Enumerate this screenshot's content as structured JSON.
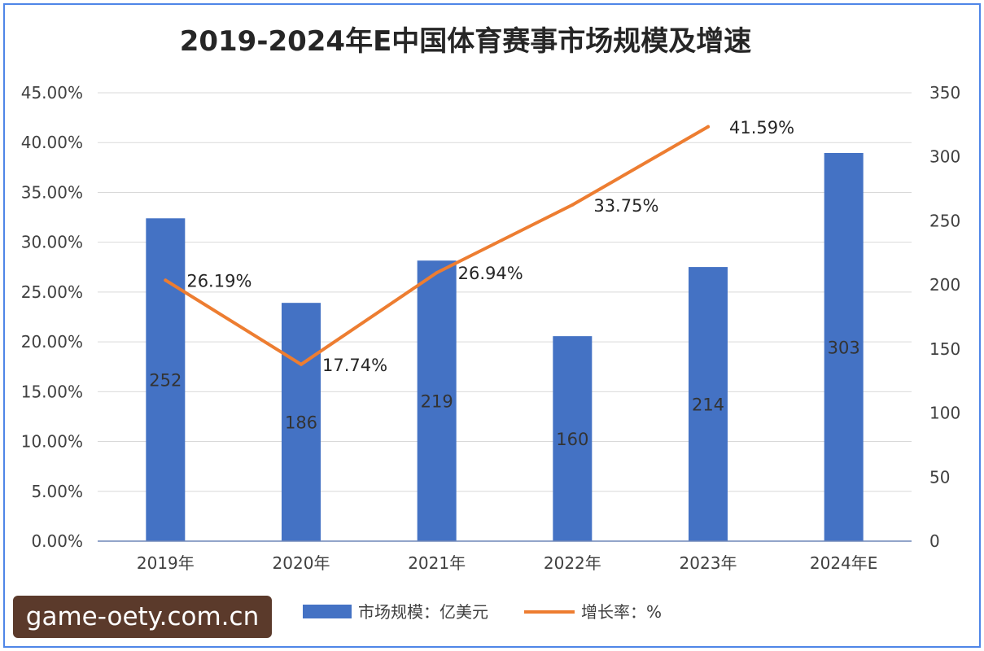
{
  "chart_data": {
    "type": "bar",
    "title": "2019-2024年E中国体育赛事市场规模及增速",
    "categories": [
      "2019年",
      "2020年",
      "2021年",
      "2022年",
      "2023年",
      "2024年E"
    ],
    "series": [
      {
        "name": "市场规模：亿美元",
        "type": "bar",
        "axis": "right",
        "values": [
          252,
          186,
          219,
          160,
          214,
          303
        ],
        "labels": [
          "252",
          "186",
          "219",
          "160",
          "214",
          "303"
        ],
        "color": "#4472c4"
      },
      {
        "name": "增长率：%",
        "type": "line",
        "axis": "left",
        "values": [
          26.19,
          17.74,
          26.94,
          33.75,
          41.59,
          null
        ],
        "labels": [
          "26.19%",
          "17.74%",
          "26.94%",
          "33.75%",
          "41.59%",
          ""
        ],
        "color": "#ed7d31"
      }
    ],
    "y_left": {
      "range": [
        0,
        45
      ],
      "ticks": [
        "0.00%",
        "5.00%",
        "10.00%",
        "15.00%",
        "20.00%",
        "25.00%",
        "30.00%",
        "35.00%",
        "40.00%",
        "45.00%"
      ]
    },
    "y_right": {
      "range": [
        0,
        350
      ],
      "ticks": [
        "0",
        "50",
        "100",
        "150",
        "200",
        "250",
        "300",
        "350"
      ]
    },
    "grid": true,
    "legend_position": "bottom"
  },
  "watermark": "game-oety.com.cn"
}
